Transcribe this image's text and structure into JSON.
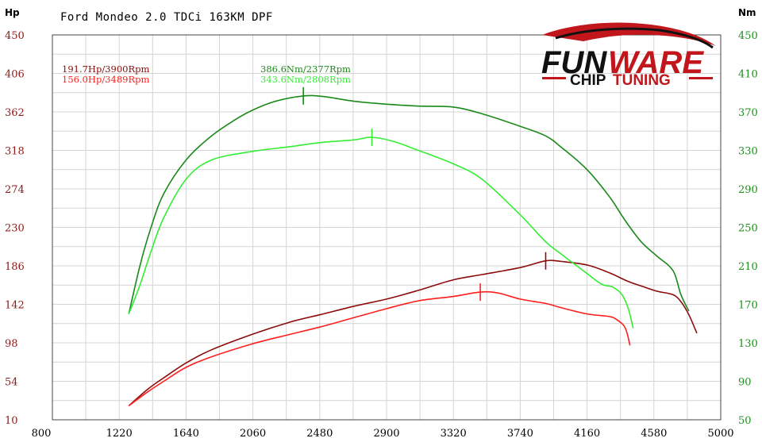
{
  "chart_data": {
    "type": "line",
    "title": "Ford Mondeo 2.0 TDCi 163KM DPF",
    "y_left_unit": "Hp",
    "y_right_unit": "Nm",
    "xlim": [
      800,
      5000
    ],
    "x_ticks": [
      "800",
      "1220",
      "1640",
      "2060",
      "2480",
      "2900",
      "3320",
      "3740",
      "4160",
      "4580",
      "5000"
    ],
    "ylim_left": [
      10,
      450
    ],
    "y_ticks_left": [
      "10",
      "54",
      "98",
      "142",
      "186",
      "230",
      "274",
      "318",
      "362",
      "406",
      "450"
    ],
    "ylim_right": [
      50,
      450
    ],
    "y_ticks_right": [
      "50",
      "90",
      "130",
      "170",
      "210",
      "250",
      "290",
      "330",
      "370",
      "410",
      "450"
    ],
    "annotations": {
      "hp_tuned": "191.7Hp/3900Rpm",
      "hp_stock": "156.0Hp/3489Rpm",
      "nm_tuned": "386.6Nm/2377Rpm",
      "nm_stock": "343.6Nm/2808Rpm"
    },
    "series": [
      {
        "axis": "left",
        "color": "#8b0a0a",
        "peak": [
          3900,
          191.7
        ],
        "points": [
          [
            1280,
            26
          ],
          [
            1400,
            45
          ],
          [
            1500,
            58
          ],
          [
            1640,
            75
          ],
          [
            1800,
            90
          ],
          [
            2060,
            108
          ],
          [
            2300,
            122
          ],
          [
            2480,
            130
          ],
          [
            2700,
            140
          ],
          [
            2900,
            148
          ],
          [
            3100,
            158
          ],
          [
            3320,
            170
          ],
          [
            3500,
            176
          ],
          [
            3740,
            184
          ],
          [
            3900,
            191.7
          ],
          [
            4000,
            191
          ],
          [
            4160,
            187
          ],
          [
            4300,
            178
          ],
          [
            4420,
            168
          ],
          [
            4500,
            163
          ],
          [
            4600,
            157
          ],
          [
            4700,
            153
          ],
          [
            4750,
            145
          ],
          [
            4800,
            130
          ],
          [
            4850,
            109
          ]
        ]
      },
      {
        "axis": "left",
        "color": "#ff1e1e",
        "peak": [
          3489,
          156.0
        ],
        "points": [
          [
            1280,
            26
          ],
          [
            1400,
            42
          ],
          [
            1500,
            54
          ],
          [
            1640,
            70
          ],
          [
            1800,
            82
          ],
          [
            2060,
            97
          ],
          [
            2300,
            108
          ],
          [
            2480,
            116
          ],
          [
            2700,
            127
          ],
          [
            2900,
            137
          ],
          [
            3100,
            146
          ],
          [
            3320,
            151
          ],
          [
            3489,
            156
          ],
          [
            3600,
            155
          ],
          [
            3740,
            148
          ],
          [
            3900,
            143
          ],
          [
            4000,
            138
          ],
          [
            4160,
            131
          ],
          [
            4300,
            128
          ],
          [
            4350,
            124
          ],
          [
            4400,
            115
          ],
          [
            4430,
            95
          ]
        ]
      },
      {
        "axis": "right",
        "color": "#1a8a1a",
        "peak": [
          2377,
          386.6
        ],
        "points": [
          [
            1280,
            160
          ],
          [
            1350,
            210
          ],
          [
            1420,
            250
          ],
          [
            1500,
            285
          ],
          [
            1640,
            320
          ],
          [
            1800,
            345
          ],
          [
            1950,
            362
          ],
          [
            2060,
            372
          ],
          [
            2200,
            381
          ],
          [
            2377,
            386.6
          ],
          [
            2500,
            386
          ],
          [
            2700,
            381
          ],
          [
            2900,
            378
          ],
          [
            3100,
            376
          ],
          [
            3320,
            375
          ],
          [
            3500,
            368
          ],
          [
            3740,
            355
          ],
          [
            3900,
            345
          ],
          [
            4000,
            333
          ],
          [
            4160,
            310
          ],
          [
            4300,
            282
          ],
          [
            4400,
            257
          ],
          [
            4500,
            235
          ],
          [
            4600,
            220
          ],
          [
            4700,
            205
          ],
          [
            4750,
            180
          ],
          [
            4800,
            163
          ]
        ]
      },
      {
        "axis": "right",
        "color": "#33ee33",
        "peak": [
          2808,
          343.6
        ],
        "points": [
          [
            1280,
            160
          ],
          [
            1350,
            190
          ],
          [
            1420,
            225
          ],
          [
            1500,
            260
          ],
          [
            1640,
            300
          ],
          [
            1800,
            320
          ],
          [
            2060,
            329
          ],
          [
            2300,
            334
          ],
          [
            2480,
            338
          ],
          [
            2700,
            341
          ],
          [
            2808,
            343.6
          ],
          [
            2950,
            339
          ],
          [
            3100,
            330
          ],
          [
            3320,
            316
          ],
          [
            3500,
            300
          ],
          [
            3740,
            263
          ],
          [
            3900,
            235
          ],
          [
            4000,
            222
          ],
          [
            4160,
            202
          ],
          [
            4250,
            191
          ],
          [
            4320,
            188
          ],
          [
            4380,
            180
          ],
          [
            4420,
            165
          ],
          [
            4450,
            145
          ]
        ]
      }
    ]
  }
}
